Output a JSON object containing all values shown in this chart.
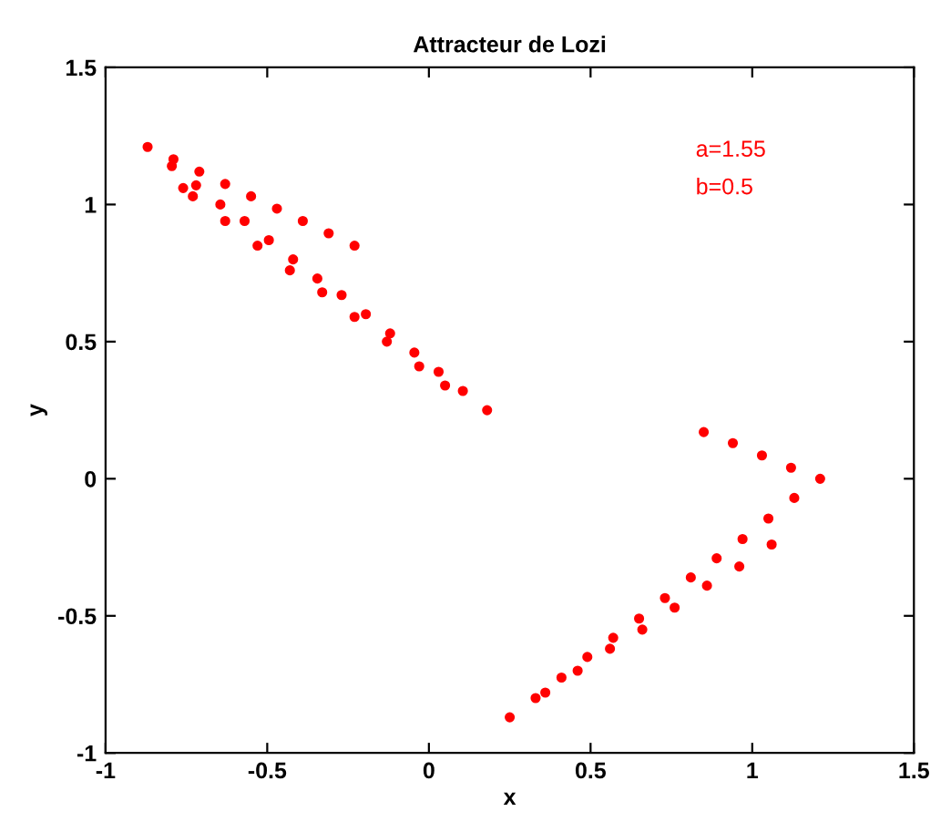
{
  "chart_data": {
    "type": "scatter",
    "title": "Attracteur de Lozi",
    "xlabel": "x",
    "ylabel": "y",
    "annotations": [
      "a=1.55",
      "b=0.5"
    ],
    "series": [
      {
        "color": "#ff0000",
        "x": [
          -0.87,
          -0.79,
          -0.71,
          -0.63,
          -0.55,
          -0.47,
          -0.39,
          -0.31,
          -0.23,
          -0.795,
          -0.72,
          -0.645,
          -0.57,
          -0.495,
          -0.42,
          -0.345,
          -0.27,
          -0.195,
          -0.12,
          -0.045,
          0.03,
          0.105,
          0.18,
          -0.73,
          -0.63,
          -0.53,
          -0.43,
          -0.33,
          -0.23,
          -0.13,
          -0.03,
          0.05,
          -0.76,
          0.85,
          0.94,
          1.03,
          1.12,
          1.21,
          1.13,
          1.05,
          0.97,
          0.89,
          0.81,
          0.73,
          0.65,
          0.57,
          0.49,
          0.41,
          0.33,
          0.25,
          1.06,
          0.96,
          0.86,
          0.76,
          0.66,
          0.56,
          0.46,
          0.36
        ],
        "values": [
          1.21,
          1.165,
          1.12,
          1.075,
          1.03,
          0.985,
          0.94,
          0.895,
          0.85,
          1.14,
          1.07,
          1.0,
          0.94,
          0.87,
          0.8,
          0.73,
          0.67,
          0.6,
          0.53,
          0.46,
          0.39,
          0.32,
          0.25,
          1.03,
          0.94,
          0.85,
          0.76,
          0.68,
          0.59,
          0.5,
          0.41,
          0.34,
          1.06,
          0.17,
          0.13,
          0.085,
          0.04,
          0.0,
          -0.07,
          -0.145,
          -0.22,
          -0.29,
          -0.36,
          -0.435,
          -0.51,
          -0.58,
          -0.65,
          -0.725,
          -0.8,
          -0.87,
          -0.24,
          -0.32,
          -0.39,
          -0.47,
          -0.55,
          -0.62,
          -0.7,
          -0.78
        ]
      }
    ],
    "xlim": [
      -1,
      1.5
    ],
    "ylim": [
      -1,
      1.5
    ],
    "xticks": [
      -1,
      -0.5,
      0,
      0.5,
      1,
      1.5
    ],
    "yticks": [
      -1,
      -0.5,
      0,
      0.5,
      1,
      1.5
    ],
    "grid": false,
    "legend": false,
    "marker": "circle"
  }
}
